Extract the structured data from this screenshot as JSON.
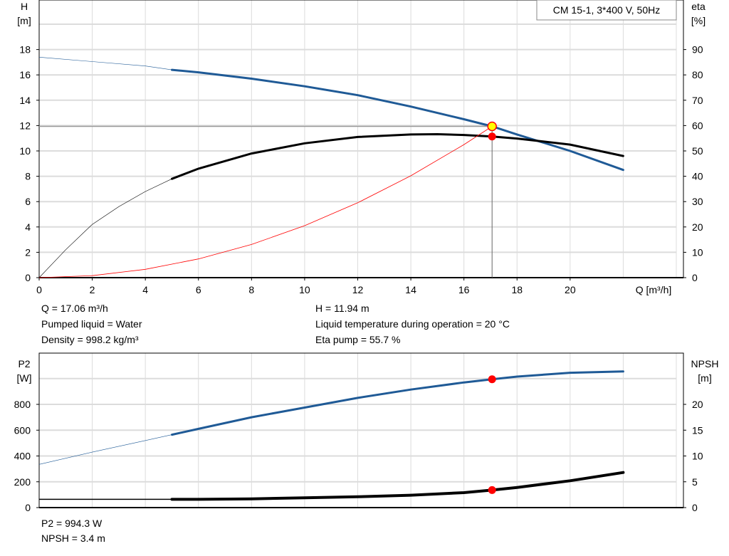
{
  "chart_data": [
    {
      "type": "line",
      "title": "CM 15-1, 3*400 V, 50Hz",
      "xlabel": "Q [m³/h]",
      "xlim": [
        0,
        24
      ],
      "xticks": [
        0,
        2,
        4,
        6,
        8,
        10,
        12,
        14,
        16,
        18,
        20
      ],
      "ylabel_left": [
        "H",
        "[m]"
      ],
      "ylim_left": [
        0,
        20
      ],
      "yticks_left": [
        0,
        2,
        4,
        6,
        8,
        10,
        12,
        14,
        16,
        18
      ],
      "ylabel_right": [
        "eta",
        "[%]"
      ],
      "ylim_right": [
        0,
        100
      ],
      "yticks_right": [
        0,
        10,
        20,
        30,
        40,
        50,
        60,
        70,
        80,
        90
      ],
      "grid": true,
      "series": [
        {
          "axis": "left",
          "color": "#1f5a96",
          "x": [
            0,
            2,
            4,
            5,
            6,
            8,
            10,
            12,
            14,
            16,
            17.06,
            18,
            20,
            22
          ],
          "y": [
            17.4,
            17.05,
            16.7,
            16.4,
            16.2,
            15.7,
            15.1,
            14.4,
            13.5,
            12.5,
            11.94,
            11.3,
            10.0,
            8.5
          ]
        },
        {
          "axis": "right",
          "color": "#000000",
          "x": [
            0,
            1,
            2,
            3,
            4,
            5,
            6,
            8,
            10,
            12,
            14,
            15,
            16,
            17.06,
            18,
            20,
            22
          ],
          "y": [
            0,
            11,
            21,
            28,
            34,
            39,
            43,
            49,
            53,
            55.5,
            56.5,
            56.6,
            56.3,
            55.7,
            54.9,
            52.5,
            48
          ]
        },
        {
          "axis": "left",
          "color": "#ff0000",
          "x": [
            0,
            2,
            4,
            6,
            8,
            10,
            12,
            14,
            16,
            17.06
          ],
          "y": [
            0,
            0.16,
            0.66,
            1.48,
            2.62,
            4.1,
            5.91,
            8.04,
            10.5,
            11.94
          ]
        }
      ],
      "operating_point": {
        "Q": 17.06,
        "H": 11.94,
        "eta": 55.7
      }
    },
    {
      "type": "line",
      "xlim": [
        0,
        24
      ],
      "ylabel_left": [
        "P2",
        "[W]"
      ],
      "ylim_left": [
        0,
        1200
      ],
      "yticks_left": [
        0,
        200,
        400,
        600,
        800
      ],
      "ylabel_right": [
        "NPSH",
        "[m]"
      ],
      "ylim_right": [
        0,
        30
      ],
      "yticks_right": [
        0,
        5,
        10,
        15,
        20
      ],
      "grid": true,
      "series": [
        {
          "axis": "left",
          "color": "#1f5a96",
          "x": [
            0,
            2,
            4,
            5,
            6,
            8,
            10,
            12,
            14,
            16,
            17.06,
            18,
            20,
            22
          ],
          "y": [
            335,
            430,
            520,
            565,
            610,
            700,
            775,
            850,
            915,
            970,
            994.3,
            1015,
            1045,
            1055
          ]
        },
        {
          "axis": "right",
          "color": "#000000",
          "x": [
            0,
            5,
            6,
            8,
            10,
            12,
            14,
            16,
            17.06,
            18,
            20,
            22
          ],
          "y": [
            1.6,
            1.6,
            1.6,
            1.7,
            1.9,
            2.1,
            2.4,
            2.9,
            3.4,
            3.9,
            5.2,
            6.8
          ]
        }
      ],
      "operating_point": {
        "Q": 17.06,
        "P2": 994.3,
        "NPSH": 3.4
      }
    }
  ],
  "info": {
    "q": "Q = 17.06 m³/h",
    "liquid": "Pumped liquid = Water",
    "density": "Density = 998.2 kg/m³",
    "h": "H = 11.94 m",
    "temp": "Liquid temperature during operation = 20 °C",
    "eta": "Eta pump = 55.7 %",
    "p2": "P2 = 994.3 W",
    "npsh": "NPSH = 3.4 m"
  }
}
